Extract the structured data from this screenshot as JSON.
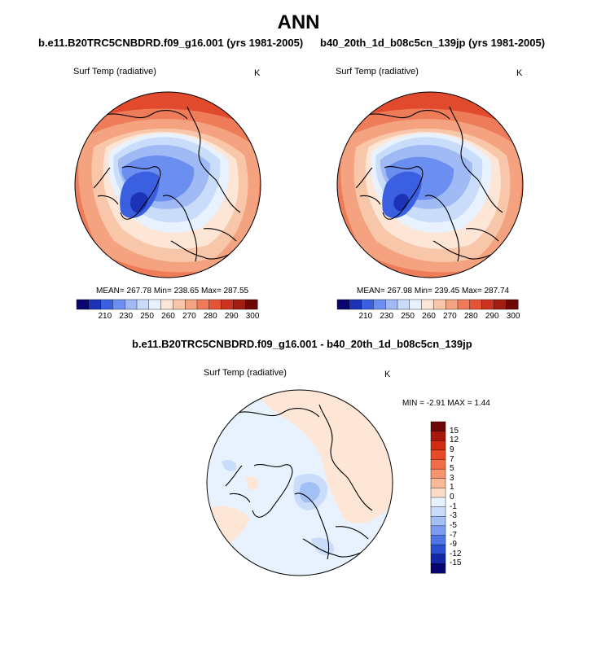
{
  "figure": {
    "title": "ANN",
    "units": "K",
    "variable_label": "Surf Temp (radiative)"
  },
  "panels": {
    "left": {
      "title": "b.e11.B20TRC5CNBDRD.f09_g16.001 (yrs 1981-2005)",
      "stats": "MEAN= 267.78  Min= 238.65  Max= 287.55"
    },
    "right": {
      "title": "b40_20th_1d_b08c5cn_139jp (yrs 1981-2005)",
      "stats": "MEAN= 267.98  Min= 239.45  Max= 287.74"
    },
    "diff": {
      "title": "b.e11.B20TRC5CNBDRD.f09_g16.001 - b40_20th_1d_b08c5cn_139jp",
      "stats": "MIN =  -2.91 MAX =   1.44"
    }
  },
  "colorbars": {
    "abs": {
      "tick_labels": [
        "210",
        "230",
        "250",
        "260",
        "270",
        "280",
        "290",
        "300"
      ],
      "colors": [
        "#08066e",
        "#1b33b4",
        "#3a5fe0",
        "#6b8ff0",
        "#9fbaf4",
        "#c9dcfa",
        "#e8f2fe",
        "#fde6d6",
        "#f8c6a8",
        "#f4a27f",
        "#ee7c58",
        "#e55535",
        "#cc3220",
        "#a11c11",
        "#6e0806"
      ]
    },
    "diff": {
      "tick_labels": [
        "15",
        "12",
        "9",
        "7",
        "5",
        "3",
        "1",
        "0",
        "-1",
        "-3",
        "-5",
        "-7",
        "-9",
        "-12",
        "-15"
      ],
      "colors": [
        "#6e0806",
        "#a6180c",
        "#cf2c12",
        "#e84a25",
        "#f26e47",
        "#f6946d",
        "#f9b896",
        "#fddcc6",
        "#e8f2fe",
        "#c9dcfa",
        "#a2bff6",
        "#7b9cf0",
        "#4f74e6",
        "#2c4fd0",
        "#1428a6",
        "#08066e"
      ]
    }
  }
}
